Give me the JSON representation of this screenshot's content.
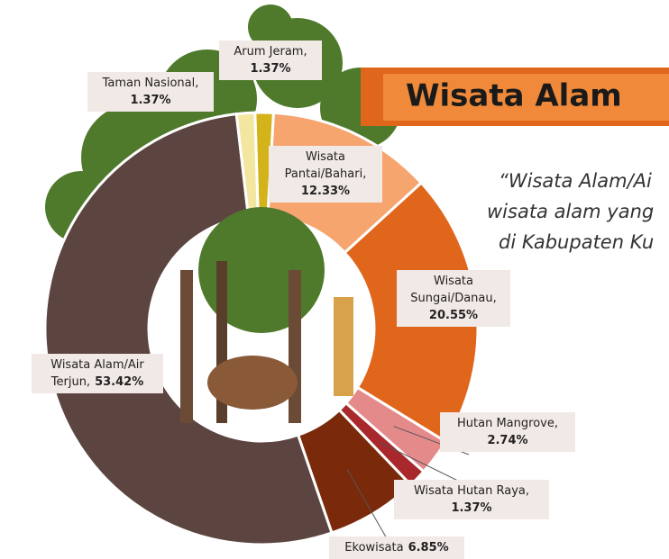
{
  "chart_data": {
    "type": "donut",
    "title": "Wisata Alam",
    "quote_lines": [
      "“Wisata Alam/Ai",
      "wisata alam yang",
      "di Kabupaten Ku"
    ],
    "categories": [
      "Arum Jeram,",
      "Wisata Pantai/Bahari,",
      "Wisata Sungai/Danau,",
      "Hutan Mangrove,",
      "Wisata Hutan Raya,",
      "Ekowisata",
      "Wisata Alam/Air Terjun,",
      "Taman Nasional,"
    ],
    "values": [
      1.37,
      12.33,
      20.55,
      2.74,
      1.37,
      6.85,
      53.42,
      1.37
    ],
    "value_labels": [
      "1.37%",
      "12.33%",
      "20.55%",
      "2.74%",
      "1.37%",
      "6.85%",
      "53.42%",
      "1.37%"
    ],
    "colors": [
      "#d4b21a",
      "#f6a56f",
      "#e0661c",
      "#e58a8a",
      "#a8282c",
      "#7a2a0a",
      "#5c4440",
      "#f3e6a0"
    ]
  }
}
